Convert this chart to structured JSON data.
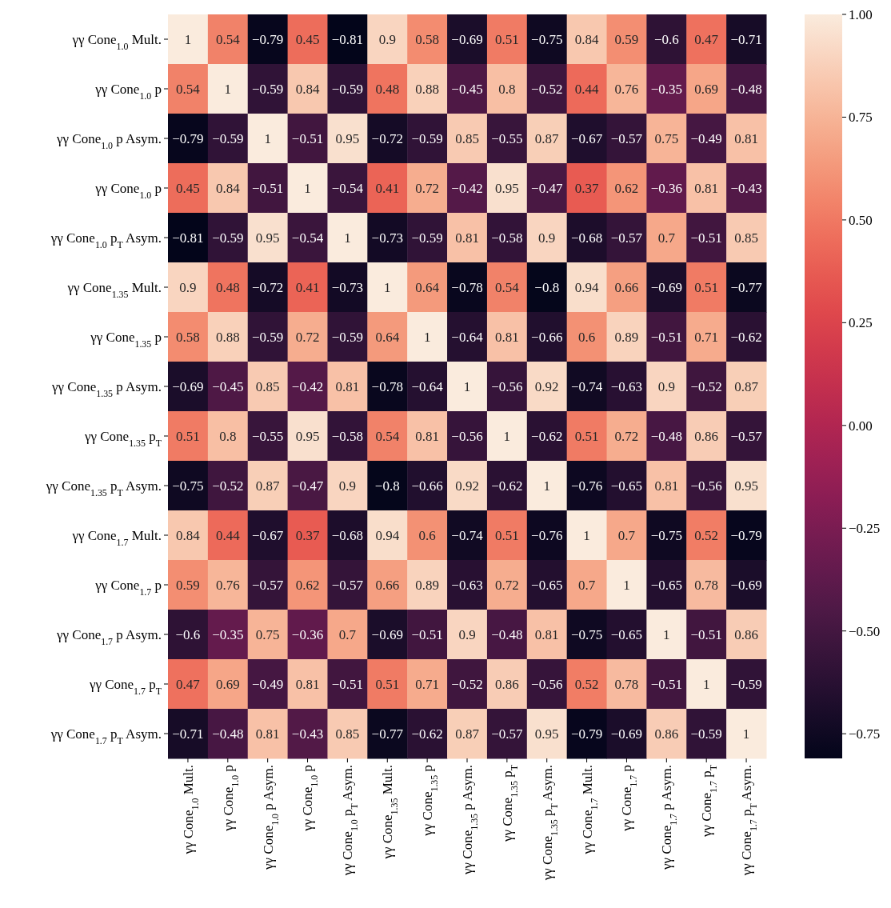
{
  "chart_data": {
    "type": "heatmap",
    "data_labels": true,
    "categories": [
      "γγ Cone$_{1.0}$ Mult.",
      "γγ Cone$_{1.0}$ p",
      "γγ Cone$_{1.0}$ p Asym.",
      "γγ Cone$_{1.0}$ p",
      "γγ Cone$_{1.0}$ p$_{T}$ Asym.",
      "γγ Cone$_{1.35}$ Mult.",
      "γγ Cone$_{1.35}$ p",
      "γγ Cone$_{1.35}$ p Asym.",
      "γγ Cone$_{1.35}$ p$_{T}$",
      "γγ Cone$_{1.35}$ p$_{T}$ Asym.",
      "γγ Cone$_{1.7}$ Mult.",
      "γγ Cone$_{1.7}$ p",
      "γγ Cone$_{1.7}$ p Asym.",
      "γγ Cone$_{1.7}$ p$_{T}$",
      "γγ Cone$_{1.7}$ p$_{T}$ Asym."
    ],
    "y_categories": [
      "γγ Cone$_{1.0}$ Mult.",
      "γγ Cone$_{1.0}$ p",
      "γγ Cone$_{1.0}$ p Asym.",
      "γγ Cone$_{1.0}$ p",
      "γγ Cone$_{1.0}$ p$_{T}$ Asym.",
      "γγ Cone$_{1.35}$ Mult.",
      "γγ Cone$_{1.35}$ p",
      "γγ Cone$_{1.35}$ p Asym.",
      "γγ Cone$_{1.35}$ p$_{T}$",
      "γγ Cone$_{1.35}$ p$_{T}$ Asym.",
      "γγ Cone$_{1.7}$ Mult.",
      "γγ Cone$_{1.7}$ p",
      "γγ Cone$_{1.7}$ p Asym.",
      "γγ Cone$_{1.7}$ p$_{T}$",
      "γγ Cone$_{1.7}$ p$_{T}$ Asym."
    ],
    "cells": [
      [
        1,
        0.54,
        -0.79,
        0.45,
        -0.81,
        0.9,
        0.58,
        -0.69,
        0.51,
        -0.75,
        0.84,
        0.59,
        -0.6,
        0.47,
        -0.71
      ],
      [
        0.54,
        1,
        -0.59,
        0.84,
        -0.59,
        0.48,
        0.88,
        -0.45,
        0.8,
        -0.52,
        0.44,
        0.76,
        -0.35,
        0.69,
        -0.48
      ],
      [
        -0.79,
        -0.59,
        1,
        -0.51,
        0.95,
        -0.72,
        -0.59,
        0.85,
        -0.55,
        0.87,
        -0.67,
        -0.57,
        0.75,
        -0.49,
        0.81
      ],
      [
        0.45,
        0.84,
        -0.51,
        1,
        -0.54,
        0.41,
        0.72,
        -0.42,
        0.95,
        -0.47,
        0.37,
        0.62,
        -0.36,
        0.81,
        -0.43
      ],
      [
        -0.81,
        -0.59,
        0.95,
        -0.54,
        1,
        -0.73,
        -0.59,
        0.81,
        -0.58,
        0.9,
        -0.68,
        -0.57,
        0.7,
        -0.51,
        0.85
      ],
      [
        0.9,
        0.48,
        -0.72,
        0.41,
        -0.73,
        1,
        0.64,
        -0.78,
        0.54,
        -0.8,
        0.94,
        0.66,
        -0.69,
        0.51,
        -0.77
      ],
      [
        0.58,
        0.88,
        -0.59,
        0.72,
        -0.59,
        0.64,
        1,
        -0.64,
        0.81,
        -0.66,
        0.6,
        0.89,
        -0.51,
        0.71,
        -0.62
      ],
      [
        -0.69,
        -0.45,
        0.85,
        -0.42,
        0.81,
        -0.78,
        -0.64,
        1,
        -0.56,
        0.92,
        -0.74,
        -0.63,
        0.9,
        -0.52,
        0.87
      ],
      [
        0.51,
        0.8,
        -0.55,
        0.95,
        -0.58,
        0.54,
        0.81,
        -0.56,
        1,
        -0.62,
        0.51,
        0.72,
        -0.48,
        0.86,
        -0.57
      ],
      [
        -0.75,
        -0.52,
        0.87,
        -0.47,
        0.9,
        -0.8,
        -0.66,
        0.92,
        -0.62,
        1,
        -0.76,
        -0.65,
        0.81,
        -0.56,
        0.95
      ],
      [
        0.84,
        0.44,
        -0.67,
        0.37,
        -0.68,
        0.94,
        0.6,
        -0.74,
        0.51,
        -0.76,
        1,
        0.7,
        -0.75,
        0.52,
        -0.79
      ],
      [
        0.59,
        0.76,
        -0.57,
        0.62,
        -0.57,
        0.66,
        0.89,
        -0.63,
        0.72,
        -0.65,
        0.7,
        1,
        -0.65,
        0.78,
        -0.69
      ],
      [
        -0.6,
        -0.35,
        0.75,
        -0.36,
        0.7,
        -0.69,
        -0.51,
        0.9,
        -0.48,
        0.81,
        -0.75,
        -0.65,
        1,
        -0.51,
        0.86
      ],
      [
        0.47,
        0.69,
        -0.49,
        0.81,
        -0.51,
        0.51,
        0.71,
        -0.52,
        0.86,
        -0.56,
        0.52,
        0.78,
        -0.51,
        1,
        -0.59
      ],
      [
        -0.71,
        -0.48,
        0.81,
        -0.43,
        0.85,
        -0.77,
        -0.62,
        0.87,
        -0.57,
        0.95,
        -0.79,
        -0.69,
        0.86,
        -0.59,
        1
      ]
    ],
    "clim": [
      -0.81,
      1
    ],
    "cticks": [
      {
        "value": -0.75,
        "label": "−0.75"
      },
      {
        "value": -0.5,
        "label": "−0.50"
      },
      {
        "value": -0.25,
        "label": "−0.25"
      },
      {
        "value": 0,
        "label": "0.00"
      },
      {
        "value": 0.25,
        "label": "0.25"
      },
      {
        "value": 0.5,
        "label": "0.50"
      },
      {
        "value": 0.75,
        "label": "0.75"
      },
      {
        "value": 1,
        "label": "1.00"
      }
    ]
  }
}
